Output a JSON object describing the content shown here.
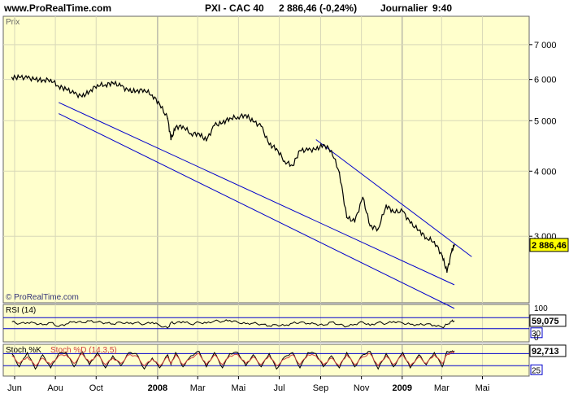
{
  "header": {
    "site": "www.ProRealTime.com",
    "instrument": "PXI - CAC 40",
    "price_change": "2 886,46 (-0,24%)",
    "period": "Journalier",
    "time": "9:40"
  },
  "colors": {
    "panel_bg": "#FFFFCC",
    "price_line": "#000000",
    "trendlines": "#0000CC",
    "stoch_d": "#D04040",
    "last_price_tag": "#FFFF00"
  },
  "chart_data": [
    {
      "type": "line",
      "panel": "price",
      "title": "Prix",
      "watermark": "© ProRealTime.com",
      "y_scale": "log",
      "ylim": [
        2300,
        7600
      ],
      "y_ticks": [
        {
          "value": 3000,
          "label": "3 000"
        },
        {
          "value": 4000,
          "label": "4 000"
        },
        {
          "value": 5000,
          "label": "5 000"
        },
        {
          "value": 6000,
          "label": "6 000"
        },
        {
          "value": 7000,
          "label": "7 000"
        }
      ],
      "last_price_label": "2 886,46",
      "last_price": 2886.46,
      "x": [
        "2007-05-28",
        "2007-06-08",
        "2007-06-20",
        "2007-07-02",
        "2007-07-13",
        "2007-07-25",
        "2007-08-06",
        "2007-08-17",
        "2007-08-29",
        "2007-09-10",
        "2007-09-21",
        "2007-10-03",
        "2007-10-15",
        "2007-10-26",
        "2007-11-07",
        "2007-11-19",
        "2007-11-30",
        "2007-12-12",
        "2007-12-24",
        "2008-01-04",
        "2008-01-16",
        "2008-01-21",
        "2008-01-28",
        "2008-02-08",
        "2008-02-20",
        "2008-03-03",
        "2008-03-14",
        "2008-03-26",
        "2008-04-07",
        "2008-04-18",
        "2008-04-30",
        "2008-05-12",
        "2008-05-23",
        "2008-06-04",
        "2008-06-16",
        "2008-06-27",
        "2008-07-09",
        "2008-07-21",
        "2008-08-01",
        "2008-08-13",
        "2008-08-25",
        "2008-09-05",
        "2008-09-17",
        "2008-09-29",
        "2008-10-10",
        "2008-10-22",
        "2008-11-03",
        "2008-11-14",
        "2008-11-26",
        "2008-12-08",
        "2008-12-19",
        "2009-01-02",
        "2009-01-13",
        "2009-01-26",
        "2009-02-06",
        "2009-02-18",
        "2009-03-02",
        "2009-03-09",
        "2009-03-16",
        "2009-03-20"
      ],
      "series": [
        {
          "values": [
            6050,
            6060,
            6040,
            6000,
            5980,
            6000,
            5820,
            5750,
            5640,
            5560,
            5690,
            5860,
            5860,
            5910,
            5830,
            5700,
            5700,
            5740,
            5600,
            5380,
            5050,
            4600,
            4860,
            4880,
            4720,
            4720,
            4580,
            4900,
            4950,
            5060,
            5080,
            5130,
            4980,
            4880,
            4500,
            4420,
            4180,
            4100,
            4380,
            4390,
            4400,
            4500,
            4380,
            3980,
            3260,
            3200,
            3560,
            3140,
            3100,
            3440,
            3340,
            3350,
            3180,
            3080,
            2980,
            2930,
            2750,
            2560,
            2800,
            2886
          ]
        }
      ],
      "trendlines": [
        {
          "points": [
            [
              "2007-08-06",
              5420
            ],
            [
              "2009-03-20",
              2420
            ]
          ]
        },
        {
          "points": [
            [
              "2007-08-06",
              5160
            ],
            [
              "2009-03-20",
              2180
            ]
          ]
        },
        {
          "points": [
            [
              "2008-08-25",
              4600
            ],
            [
              "2009-04-15",
              2740
            ]
          ]
        }
      ]
    },
    {
      "type": "line",
      "panel": "rsi",
      "title": "RSI (14)",
      "ylim": [
        0,
        100
      ],
      "y_ticks": [
        {
          "value": 100,
          "label": "100"
        },
        {
          "value": 0,
          "label": "0"
        }
      ],
      "levels": [
        {
          "value": 70,
          "label": ""
        },
        {
          "value": 30,
          "label": "30"
        }
      ],
      "last_value_label": "59,075",
      "last_value": 59.075,
      "series": [
        {
          "values": [
            55,
            48,
            52,
            50,
            44,
            52,
            38,
            47,
            56,
            52,
            58,
            54,
            51,
            47,
            53,
            49,
            52,
            46,
            53,
            42,
            32,
            52,
            50,
            56,
            46,
            53,
            50,
            58,
            56,
            60,
            53,
            48,
            50,
            46,
            40,
            44,
            41,
            50,
            53,
            49,
            47,
            42,
            54,
            45,
            38,
            46,
            54,
            42,
            53,
            48,
            56,
            50,
            46,
            44,
            47,
            42,
            35,
            45,
            57,
            59
          ]
        }
      ]
    },
    {
      "type": "line",
      "panel": "stochastic",
      "title": "Stoch %K Stoch %D",
      "series_labels": [
        "Stoch %K",
        "Stoch %D (14,3,5)"
      ],
      "ylim": [
        0,
        100
      ],
      "levels": [
        {
          "value": 80,
          "label": ""
        },
        {
          "value": 25,
          "label": "25"
        }
      ],
      "last_value_label": "92,713",
      "last_value": 92.713,
      "series": [
        {
          "name": "Stoch %K",
          "values": [
            80,
            20,
            85,
            10,
            75,
            15,
            80,
            85,
            20,
            90,
            30,
            85,
            15,
            70,
            25,
            85,
            80,
            10,
            60,
            15,
            75,
            30,
            85,
            20,
            70,
            90,
            20,
            85,
            15,
            80,
            85,
            25,
            75,
            20,
            80,
            10,
            65,
            85,
            15,
            85,
            80,
            20,
            70,
            15,
            85,
            20,
            75,
            90,
            10,
            80,
            20,
            85,
            15,
            75,
            30,
            85,
            20,
            90,
            88,
            93
          ]
        },
        {
          "name": "Stoch %D (14,3,5)",
          "values": [
            70,
            35,
            65,
            25,
            60,
            30,
            70,
            75,
            35,
            80,
            40,
            75,
            30,
            60,
            35,
            75,
            70,
            25,
            55,
            25,
            65,
            35,
            75,
            30,
            60,
            80,
            30,
            75,
            30,
            70,
            75,
            35,
            65,
            30,
            70,
            25,
            55,
            75,
            30,
            75,
            70,
            30,
            60,
            25,
            75,
            30,
            65,
            80,
            25,
            70,
            30,
            75,
            25,
            65,
            35,
            75,
            35,
            75,
            85,
            88
          ]
        }
      ]
    }
  ],
  "x_axis": {
    "labels": [
      {
        "date": "2007-06-01",
        "text": "Jun"
      },
      {
        "date": "2007-08-01",
        "text": "Aou"
      },
      {
        "date": "2007-10-01",
        "text": "Oct"
      },
      {
        "date": "2008-01-01",
        "text": "2008",
        "bold": true
      },
      {
        "date": "2008-03-01",
        "text": "Mar"
      },
      {
        "date": "2008-05-01",
        "text": "Mai"
      },
      {
        "date": "2008-07-01",
        "text": "Jul"
      },
      {
        "date": "2008-09-01",
        "text": "Sep"
      },
      {
        "date": "2008-11-01",
        "text": "Nov"
      },
      {
        "date": "2009-01-01",
        "text": "2009",
        "bold": true
      },
      {
        "date": "2009-03-01",
        "text": "Mar"
      },
      {
        "date": "2009-05-01",
        "text": "Mai"
      }
    ]
  }
}
